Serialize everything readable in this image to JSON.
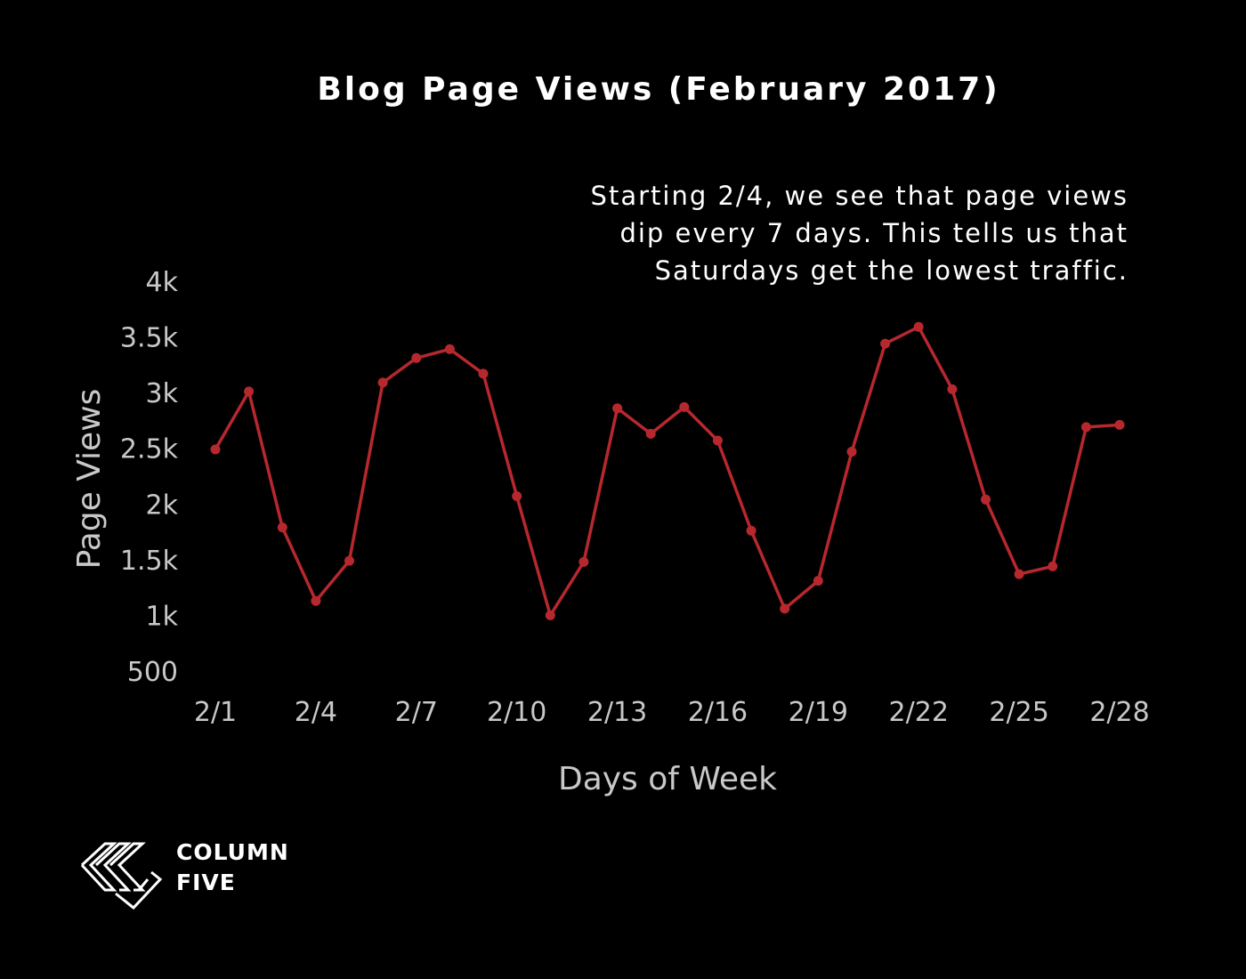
{
  "chart_data": {
    "type": "line",
    "title": "Blog Page Views (February 2017)",
    "annotation": [
      "Starting 2/4, we see that page views",
      "dip every 7 days. This tells us that",
      "Saturdays get the lowest traffic."
    ],
    "xlabel": "Days of Week",
    "ylabel": "Page Views",
    "x": [
      "2/1",
      "2/2",
      "2/3",
      "2/4",
      "2/5",
      "2/6",
      "2/7",
      "2/8",
      "2/9",
      "2/10",
      "2/11",
      "2/12",
      "2/13",
      "2/14",
      "2/15",
      "2/16",
      "2/17",
      "2/18",
      "2/19",
      "2/20",
      "2/21",
      "2/22",
      "2/23",
      "2/24",
      "2/25",
      "2/26",
      "2/27",
      "2/28"
    ],
    "x_ticks": [
      "2/1",
      "2/4",
      "2/7",
      "2/10",
      "2/13",
      "2/16",
      "2/19",
      "2/22",
      "2/25",
      "2/28"
    ],
    "y_ticks": [
      {
        "value": 500,
        "label": "500"
      },
      {
        "value": 1000,
        "label": "1k"
      },
      {
        "value": 1500,
        "label": "1.5k"
      },
      {
        "value": 2000,
        "label": "2k"
      },
      {
        "value": 2500,
        "label": "2.5k"
      },
      {
        "value": 3000,
        "label": "3k"
      },
      {
        "value": 3500,
        "label": "3.5k"
      },
      {
        "value": 4000,
        "label": "4k"
      }
    ],
    "ylim": [
      500,
      4000
    ],
    "grid": false,
    "series": [
      {
        "color": "#b7282e",
        "values": [
          2490,
          3010,
          1790,
          1130,
          1490,
          3090,
          3310,
          3390,
          3170,
          2070,
          1000,
          1480,
          2860,
          2630,
          2870,
          2570,
          1760,
          1060,
          1310,
          2470,
          3440,
          3590,
          3030,
          2040,
          1370,
          1440,
          2690,
          2710
        ]
      }
    ]
  },
  "logo": {
    "line1": "COLUMN",
    "line2": "FIVE"
  }
}
